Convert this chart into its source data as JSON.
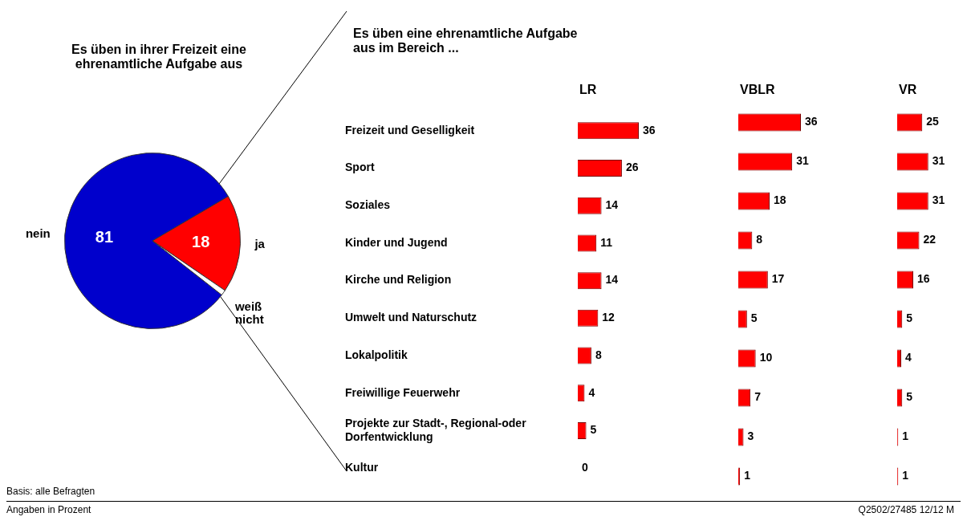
{
  "chart_data": [
    {
      "type": "pie",
      "title": "Es üben in ihrer Freizeit eine ehrenamtliche Aufgabe aus",
      "categories": [
        "nein",
        "ja",
        "weiß nicht"
      ],
      "values": [
        81,
        18,
        1
      ],
      "colors": [
        "#0000cc",
        "#ff0000",
        "#ffffff"
      ],
      "value_labels": [
        "81",
        "18",
        null
      ],
      "annotations": [
        "Basis: alle Befragten",
        "Angaben in Prozent",
        "Q2502/27485 12/12 M"
      ]
    },
    {
      "type": "bar",
      "orientation": "horizontal",
      "title": "Es üben eine ehrenamtliche Aufgabe aus im Bereich ...",
      "subtitle": "LR",
      "categories": [
        "Freizeit und Geselligkeit",
        "Sport",
        "Soziales",
        "Kinder und Jugend",
        "Kirche und Religion",
        "Umwelt und Naturschutz",
        "Lokalpolitik",
        "Freiwillige Feuerwehr",
        "Projekte zur Stadt-, Regional-oder Dorfentwicklung",
        "Kultur"
      ],
      "values": [
        36,
        26,
        14,
        11,
        14,
        12,
        8,
        4,
        5,
        0
      ],
      "color": "#ff0000",
      "data_labels": true,
      "tick_labels": "y"
    },
    {
      "type": "bar",
      "orientation": "horizontal",
      "title": "VBLR",
      "categories": [
        null,
        null,
        null,
        null,
        null,
        null,
        null,
        null,
        null,
        null
      ],
      "values": [
        36,
        31,
        18,
        8,
        17,
        5,
        10,
        7,
        3,
        1
      ],
      "color": "#ff0000",
      "data_labels": true,
      "tick_labels": false
    },
    {
      "type": "bar",
      "orientation": "horizontal",
      "title": "VR",
      "categories": [
        null,
        null,
        null,
        null,
        null,
        null,
        null,
        null,
        null,
        null
      ],
      "values": [
        25,
        31,
        31,
        22,
        16,
        5,
        4,
        5,
        1,
        1
      ],
      "color": "#ff0000",
      "data_labels": true,
      "tick_labels": false
    }
  ]
}
